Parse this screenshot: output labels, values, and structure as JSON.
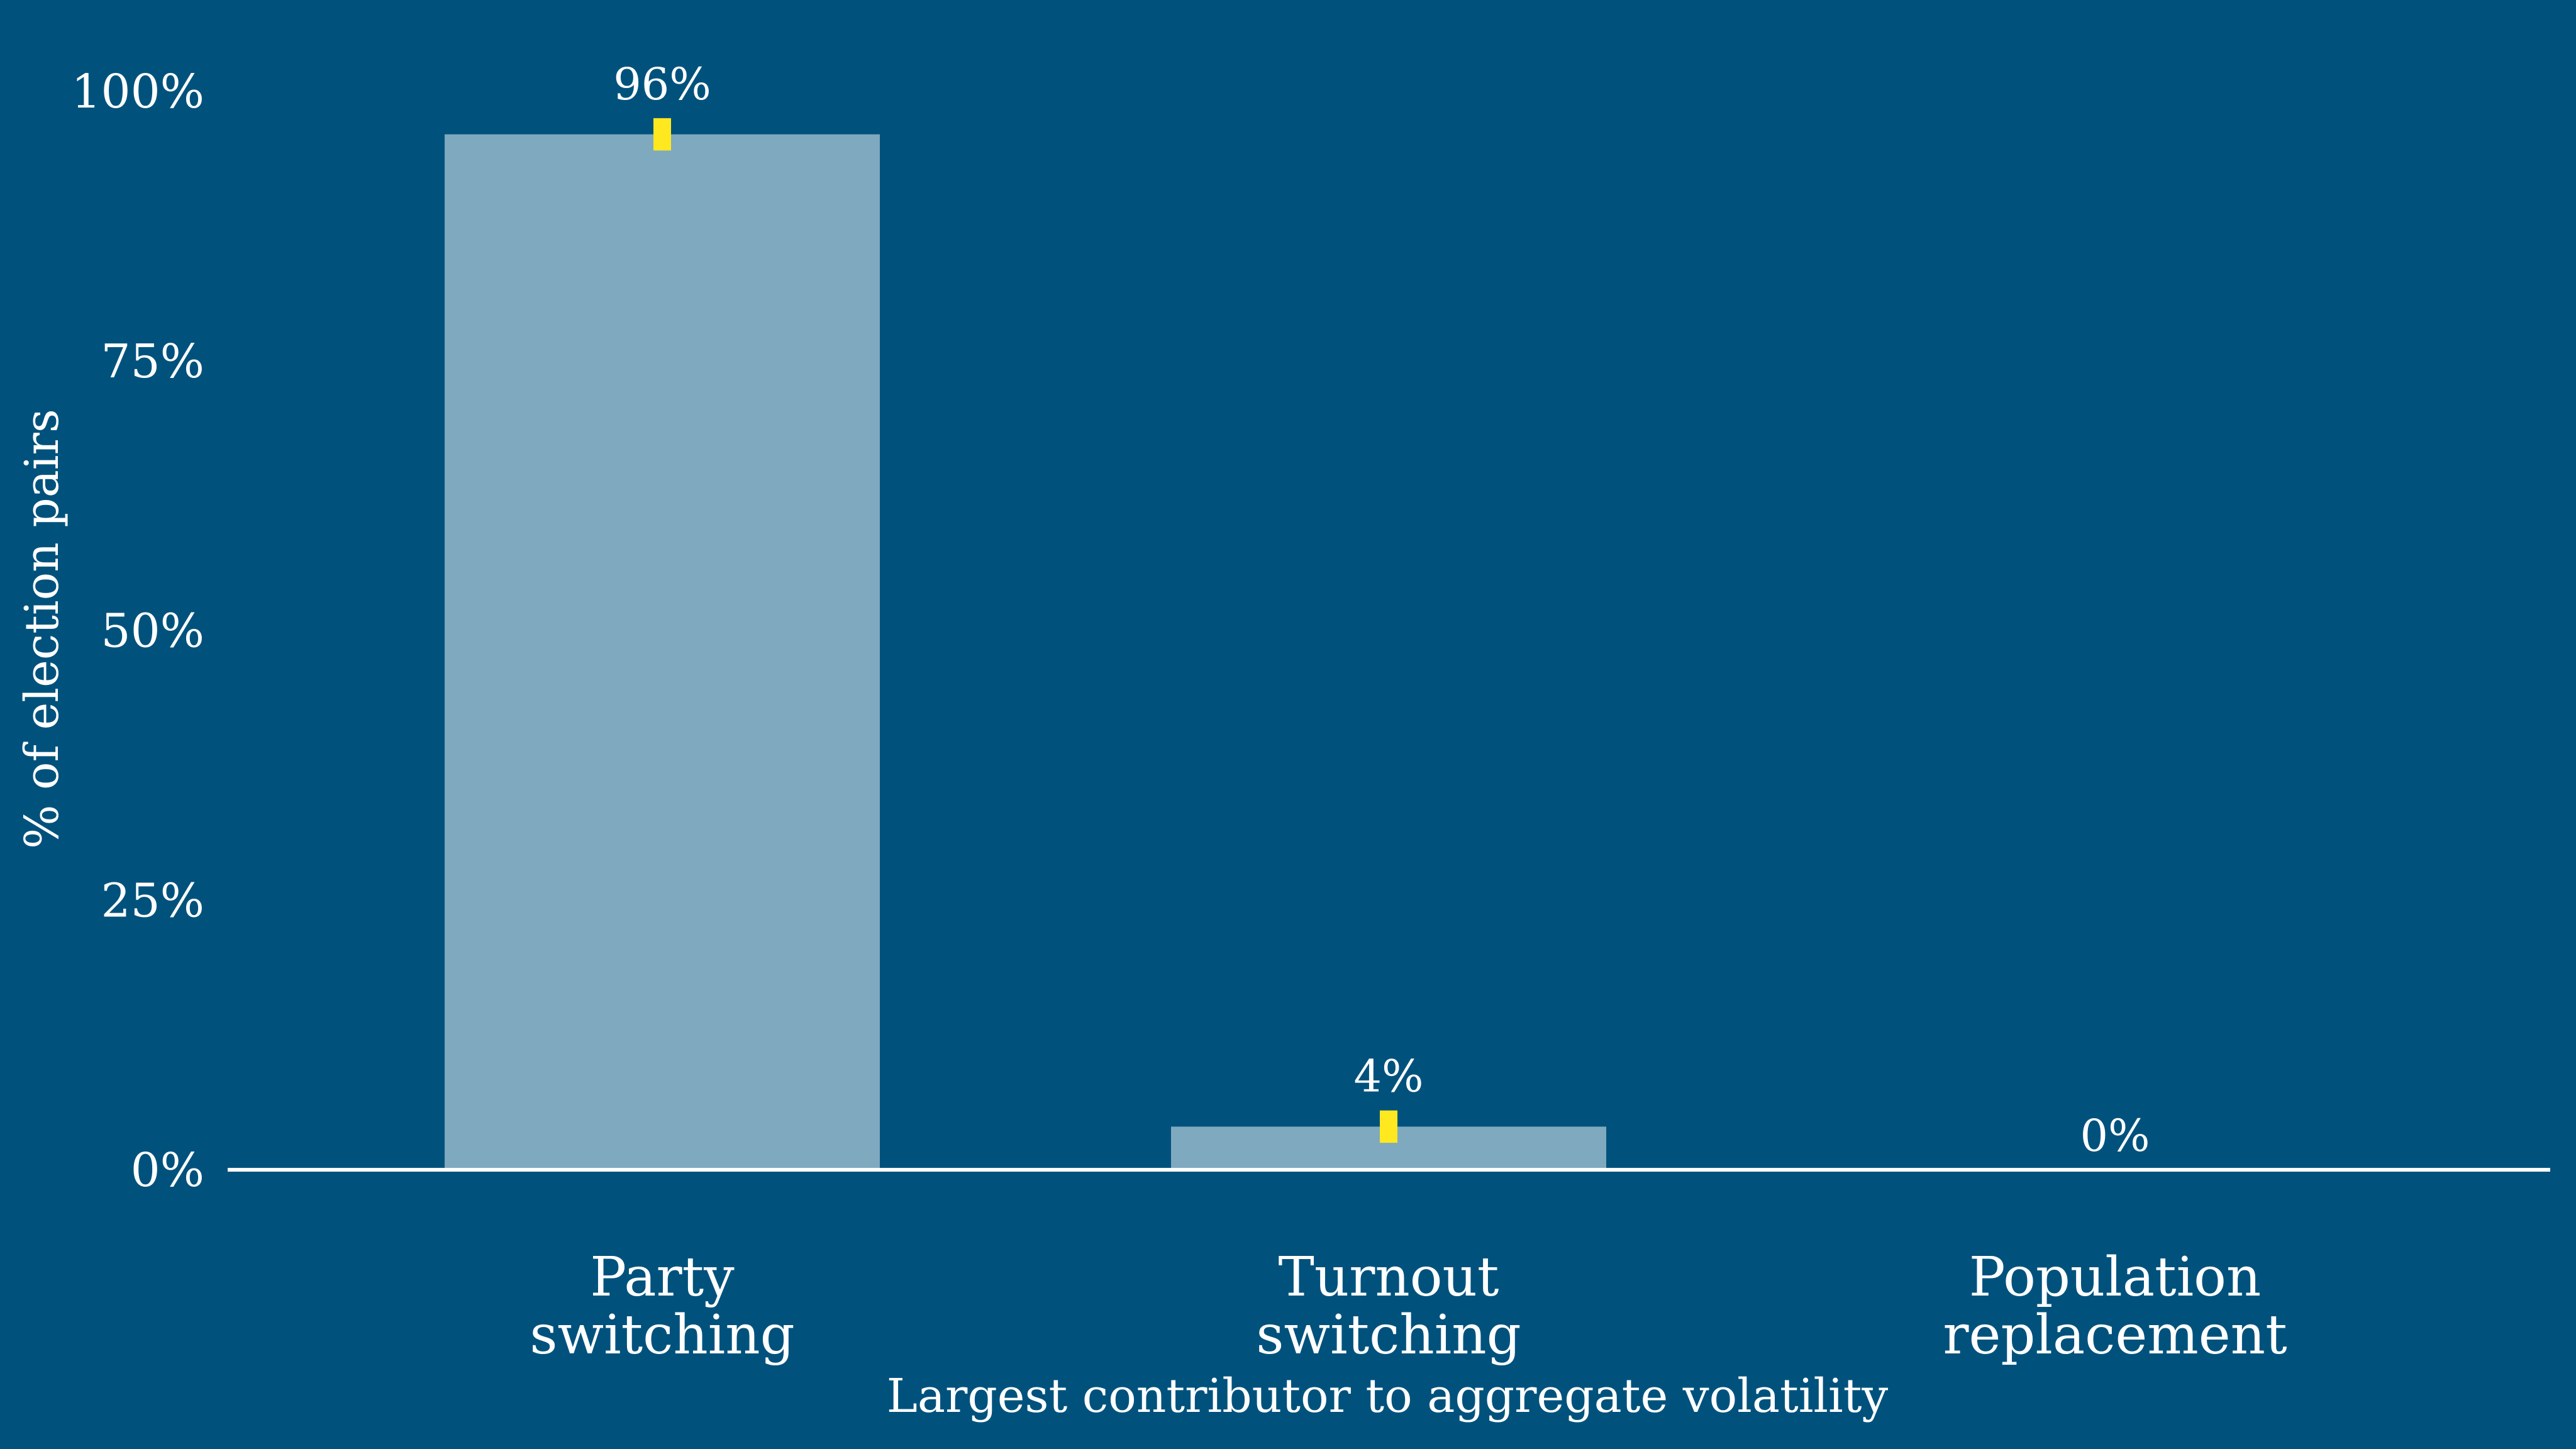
{
  "chart_data": {
    "type": "bar",
    "categories": [
      [
        "Party",
        "switching"
      ],
      [
        "Turnout",
        "switching"
      ],
      [
        "Population",
        "replacement"
      ]
    ],
    "values": [
      96,
      4,
      0
    ],
    "labels": [
      "96%",
      "4%",
      "0%"
    ],
    "error_bars": [
      [
        94.5,
        97.5
      ],
      [
        2.5,
        5.5
      ],
      null
    ],
    "ylim": [
      0,
      100
    ],
    "yticks": [
      0,
      25,
      50,
      75,
      100
    ],
    "ytick_labels": [
      "0%",
      "25%",
      "50%",
      "75%",
      "100%"
    ],
    "ylabel": "% of election pairs",
    "xlabel": "Largest contributor to aggregate volatility",
    "grid": false,
    "legend": "none"
  },
  "colors": {
    "background": "#00527D",
    "bar": "#7FA9BF",
    "error_bar": "#FFE81F",
    "axis_line": "#FFFFFF",
    "text": "#FFFFFF"
  }
}
